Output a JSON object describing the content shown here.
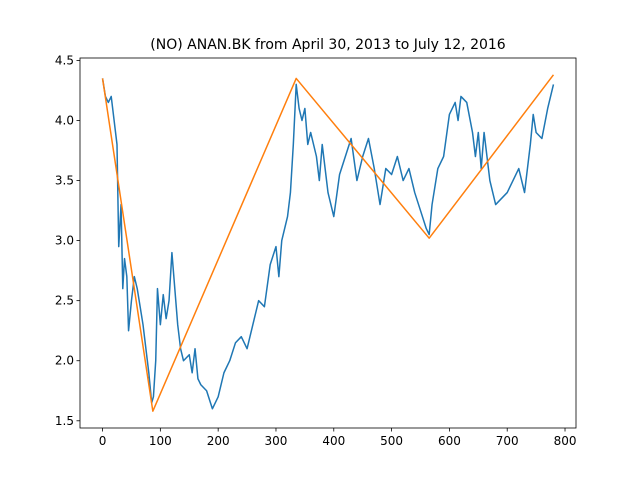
{
  "chart_data": {
    "type": "line",
    "title": "(NO) ANAN.BK from April 30, 2013 to July 12, 2016",
    "xlim": [
      -39,
      819
    ],
    "xticks": [
      0,
      100,
      200,
      300,
      400,
      500,
      600,
      700,
      800
    ],
    "ylim": [
      1.44,
      4.52
    ],
    "yticks": [
      1.5,
      {
        "value": 2,
        "label": "2.0"
      },
      2.5,
      {
        "value": 3,
        "label": "3.0"
      },
      3.5,
      {
        "value": 4,
        "label": "4.0"
      },
      4.5
    ],
    "series": [
      {
        "color": "#1f77b4",
        "x": [
          0,
          5,
          10,
          15,
          20,
          25,
          28,
          32,
          35,
          38,
          42,
          45,
          50,
          55,
          60,
          65,
          70,
          75,
          80,
          85,
          88,
          92,
          95,
          100,
          105,
          110,
          115,
          120,
          125,
          130,
          135,
          140,
          150,
          155,
          160,
          165,
          170,
          180,
          190,
          200,
          210,
          220,
          230,
          240,
          250,
          260,
          270,
          280,
          290,
          300,
          305,
          310,
          320,
          325,
          330,
          335,
          340,
          345,
          350,
          355,
          360,
          370,
          375,
          380,
          390,
          400,
          410,
          420,
          430,
          440,
          450,
          460,
          470,
          480,
          490,
          500,
          510,
          520,
          530,
          540,
          550,
          560,
          565,
          570,
          580,
          590,
          600,
          610,
          615,
          620,
          630,
          640,
          645,
          650,
          655,
          660,
          670,
          680,
          690,
          700,
          710,
          720,
          730,
          740,
          745,
          750,
          760,
          770,
          780
        ],
        "values": [
          4.35,
          4.2,
          4.15,
          4.2,
          4.0,
          3.8,
          2.95,
          3.3,
          2.6,
          2.85,
          2.7,
          2.25,
          2.5,
          2.7,
          2.6,
          2.45,
          2.3,
          2.1,
          1.9,
          1.65,
          1.7,
          2.0,
          2.6,
          2.3,
          2.55,
          2.35,
          2.5,
          2.9,
          2.6,
          2.3,
          2.1,
          2.0,
          2.05,
          1.9,
          2.1,
          1.85,
          1.8,
          1.75,
          1.6,
          1.7,
          1.9,
          2.0,
          2.15,
          2.2,
          2.1,
          2.3,
          2.5,
          2.45,
          2.8,
          2.95,
          2.7,
          3.0,
          3.2,
          3.4,
          3.8,
          4.3,
          4.1,
          4.0,
          4.1,
          3.8,
          3.9,
          3.7,
          3.5,
          3.8,
          3.4,
          3.2,
          3.55,
          3.7,
          3.85,
          3.5,
          3.7,
          3.85,
          3.6,
          3.3,
          3.6,
          3.55,
          3.7,
          3.5,
          3.6,
          3.4,
          3.25,
          3.1,
          3.05,
          3.3,
          3.6,
          3.7,
          4.05,
          4.15,
          4.0,
          4.2,
          4.15,
          3.9,
          3.7,
          3.9,
          3.6,
          3.9,
          3.5,
          3.3,
          3.35,
          3.4,
          3.5,
          3.6,
          3.4,
          3.8,
          4.05,
          3.9,
          3.85,
          4.1,
          4.3
        ]
      },
      {
        "color": "#ff7f0e",
        "x": [
          0,
          87,
          335,
          565,
          780
        ],
        "values": [
          4.35,
          1.58,
          4.35,
          3.02,
          4.38
        ]
      }
    ]
  }
}
